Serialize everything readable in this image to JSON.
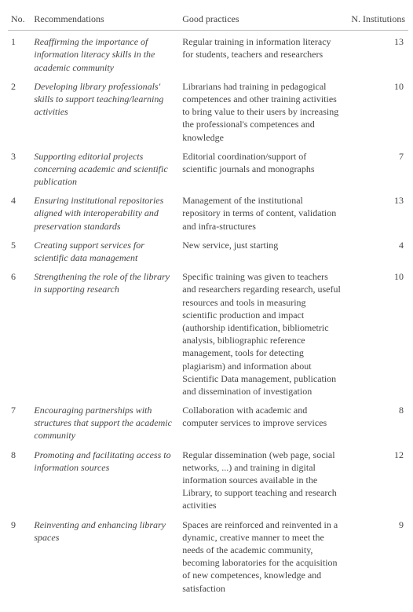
{
  "headers": {
    "no": "No.",
    "rec": "Recommendations",
    "prac": "Good practices",
    "inst": "N. Institutions"
  },
  "rows": [
    {
      "no": "1",
      "rec": "Reaffirming the importance of information literacy skills in the academic community",
      "prac": "Regular training in information literacy for students, teachers and researchers",
      "inst": "13"
    },
    {
      "no": "2",
      "rec": "Developing library professionals' skills to support teaching/learning activities",
      "prac": "Librarians had training in pedagogical competences and other training activities to bring value to their users by increasing the professional's competences and knowledge",
      "inst": "10"
    },
    {
      "no": "3",
      "rec": "Supporting editorial projects concerning academic and scientific publication",
      "prac": "Editorial coordination/support of scientific journals and monographs",
      "inst": "7"
    },
    {
      "no": "4",
      "rec": "Ensuring institutional repositories aligned with interoperability and preservation standards",
      "prac": "Management of the institutional repository in terms of content, validation and infra-structures",
      "inst": "13"
    },
    {
      "no": "5",
      "rec": "Creating support services for scientific data management",
      "prac": "New service, just starting",
      "inst": "4"
    },
    {
      "no": "6",
      "rec": "Strengthening the role of the library in supporting research",
      "prac": "Specific training was given to teachers and researchers regarding research, useful resources and tools in measuring scientific production and impact (authorship identification, bibliometric analysis, bibliographic reference management, tools for detecting plagiarism) and information about Scientific Data management, publication and dissemination of investigation",
      "inst": "10"
    },
    {
      "no": "7",
      "rec": "Encouraging partnerships with structures that support the academic community",
      "prac": "Collaboration with academic and computer services to improve services",
      "inst": "8"
    },
    {
      "no": "8",
      "rec": "Promoting and facilitating access to information sources",
      "prac": "Regular dissemination (web page, social networks, ...) and training in digital information sources available in the Library, to support teaching and research activities",
      "inst": "12"
    },
    {
      "no": "9",
      "rec": "Reinventing and enhancing library spaces",
      "prac": "Spaces are reinforced and reinvented in a dynamic, creative manner to meet the needs of the academic community, becoming laboratories for the acquisition of new competences, knowledge and satisfaction",
      "inst": "9"
    }
  ]
}
